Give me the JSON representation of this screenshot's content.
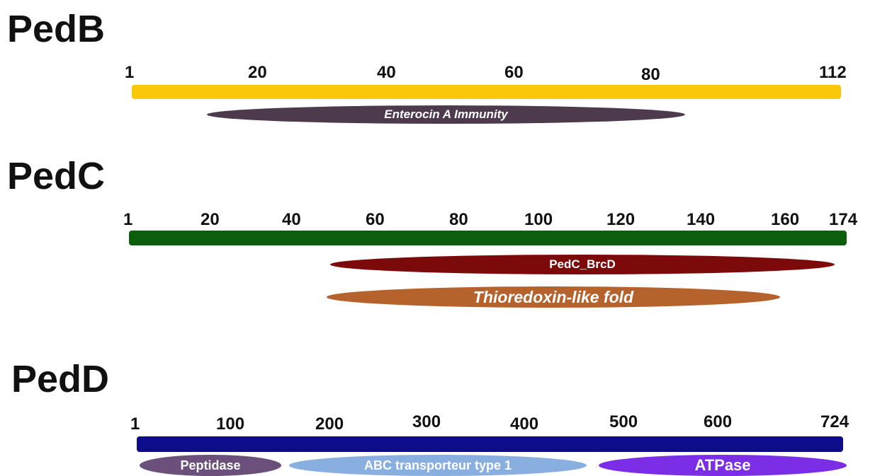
{
  "proteins": [
    {
      "id": "pedb",
      "name": "PedB",
      "ticks": [
        "1",
        "20",
        "40",
        "60",
        "80",
        "112"
      ],
      "bar_color": "#fac70a",
      "domains": [
        {
          "label": "Enterocin A Immunity",
          "color": "#4d3a4d",
          "italic": true
        }
      ]
    },
    {
      "id": "pedc",
      "name": "PedC",
      "ticks": [
        "1",
        "20",
        "40",
        "60",
        "80",
        "100",
        "120",
        "140",
        "160",
        "174"
      ],
      "bar_color": "#0c5d0c",
      "domains": [
        {
          "label": "PedC_BrcD",
          "color": "#7d0a0a",
          "italic": false
        },
        {
          "label": "Thioredoxin-like fold",
          "color": "#b5622c",
          "italic": true
        }
      ]
    },
    {
      "id": "pedd",
      "name": "PedD",
      "ticks": [
        "1",
        "100",
        "200",
        "300",
        "400",
        "500",
        "600",
        "724"
      ],
      "bar_color": "#0d0d8c",
      "domains": [
        {
          "label": "Peptidase",
          "color": "#6a507a",
          "italic": false
        },
        {
          "label": "ABC transporteur type 1",
          "color": "#89aee0",
          "italic": false
        },
        {
          "label": "ATPase",
          "color": "#7b2ee6",
          "italic": false
        }
      ]
    }
  ]
}
